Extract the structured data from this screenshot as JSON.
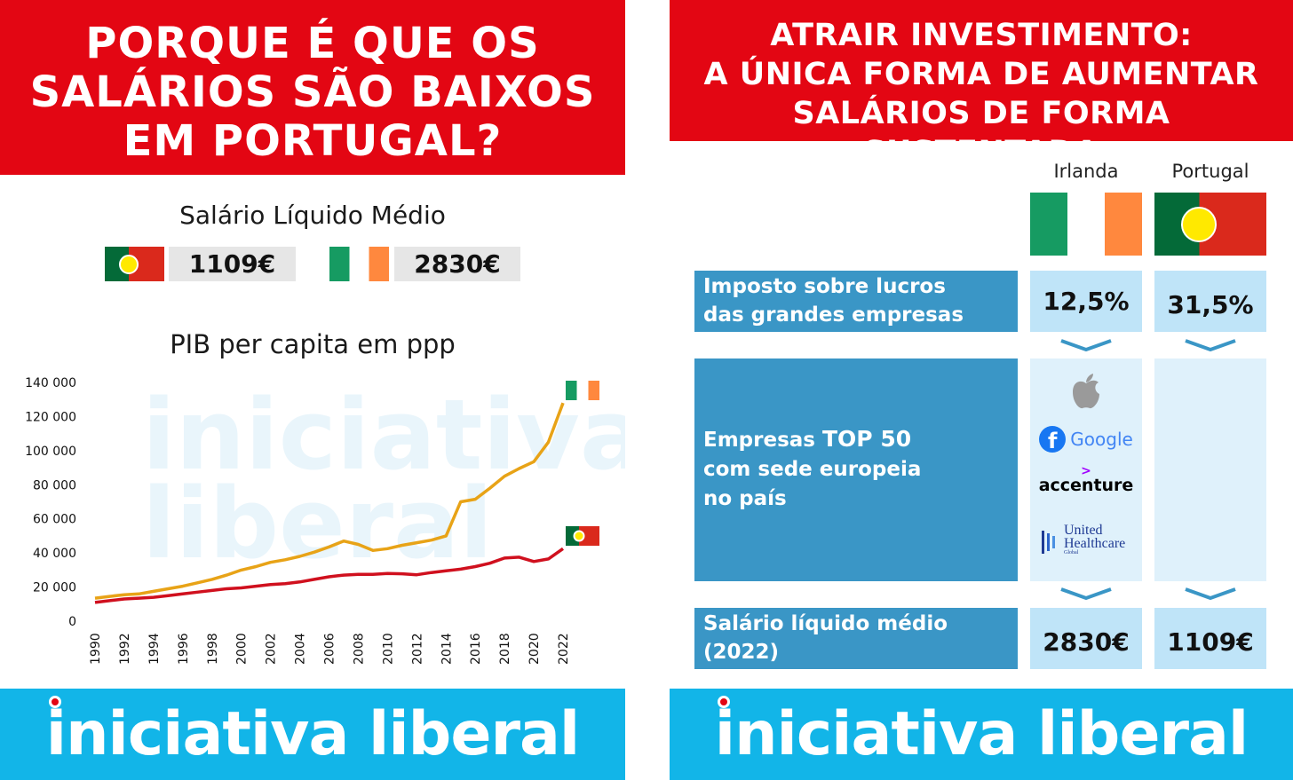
{
  "left": {
    "title_lines": [
      "PORQUE É QUE OS",
      "SALÁRIOS SÃO BAIXOS",
      "EM PORTUGAL?"
    ],
    "salary_heading": "Salário Líquido Médio",
    "salary_portugal": "1109€",
    "salary_ireland": "2830€",
    "footer": {
      "part1": "iniciativa",
      "part2": "liberal"
    },
    "watermark": {
      "line1": "iniciativa",
      "line2": "liberal"
    }
  },
  "right": {
    "title_lines": [
      "ATRAIR INVESTIMENTO:",
      "A ÚNICA FORMA DE AUMENTAR",
      "SALÁRIOS DE FORMA SUSTENTADA"
    ],
    "columns": [
      "Irlanda",
      "Portugal"
    ],
    "rows": {
      "tax": {
        "label_lines": [
          "Imposto sobre lucros",
          "das grandes empresas"
        ],
        "ireland": "12,5%",
        "portugal": "31,5%"
      },
      "companies": {
        "label_pre": "Empresas ",
        "label_bold": "TOP 50",
        "label_lines": [
          "com sede europeia",
          "no país"
        ],
        "logos": {
          "google": "Google",
          "accenture": "accenture",
          "united_line1": "United",
          "united_line2": "Healthcare",
          "united_line3": "Global"
        }
      },
      "salary": {
        "label_lines": [
          "Salário líquido médio",
          "(2022)"
        ],
        "ireland": "2830€",
        "portugal": "1109€"
      }
    },
    "footer": {
      "part1": "iniciativa",
      "part2": "liberal"
    }
  },
  "colors": {
    "red": "#e30613",
    "blue": "#12b5e8",
    "ireland_line": "#e8a317",
    "portugal_line": "#d0101e",
    "row_blue": "#3a96c6"
  },
  "chart_data": {
    "type": "line",
    "title": "PIB per capita em ppp",
    "xlabel": "",
    "ylabel": "",
    "x": [
      1990,
      1991,
      1992,
      1993,
      1994,
      1995,
      1996,
      1997,
      1998,
      1999,
      2000,
      2001,
      2002,
      2003,
      2004,
      2005,
      2006,
      2007,
      2008,
      2009,
      2010,
      2011,
      2012,
      2013,
      2014,
      2015,
      2016,
      2017,
      2018,
      2019,
      2020,
      2021,
      2022
    ],
    "xticks": [
      "1990",
      "1992",
      "1994",
      "1996",
      "1998",
      "2000",
      "2002",
      "2004",
      "2006",
      "2008",
      "2010",
      "2012",
      "2014",
      "2016",
      "2018",
      "2020",
      "2022"
    ],
    "ylim": [
      0,
      140000
    ],
    "yticks": [
      "0",
      "20 000",
      "40 000",
      "60 000",
      "80 000",
      "100 000",
      "120 000",
      "140 000"
    ],
    "yticks_values": [
      0,
      20000,
      40000,
      60000,
      80000,
      100000,
      120000,
      140000
    ],
    "grid": false,
    "legend": "flags at line ends",
    "series": [
      {
        "name": "Irlanda",
        "flag": "ireland",
        "color": "#e8a317",
        "values": [
          13500,
          14500,
          15500,
          16000,
          17500,
          19000,
          20500,
          22500,
          24500,
          27000,
          30000,
          32000,
          34500,
          36000,
          38000,
          40500,
          43500,
          47000,
          45000,
          41500,
          42500,
          44500,
          46000,
          47500,
          50000,
          70000,
          71500,
          78000,
          85000,
          89500,
          93500,
          105000,
          128000
        ]
      },
      {
        "name": "Portugal",
        "flag": "portugal",
        "color": "#d0101e",
        "values": [
          11000,
          12000,
          13000,
          13500,
          14000,
          15000,
          16000,
          17000,
          18000,
          19000,
          19500,
          20500,
          21500,
          22000,
          23000,
          24500,
          26000,
          27000,
          27500,
          27500,
          28000,
          27800,
          27200,
          28500,
          29500,
          30500,
          32000,
          34000,
          37000,
          37500,
          35000,
          36500,
          42500
        ]
      }
    ]
  }
}
